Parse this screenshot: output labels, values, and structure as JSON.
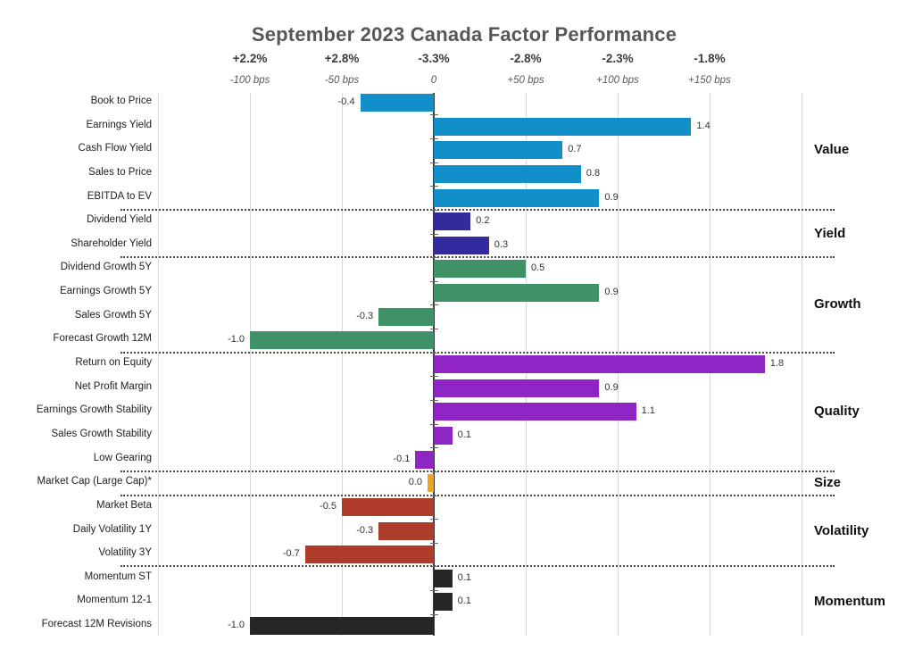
{
  "page": {
    "background": "#ffffff"
  },
  "colors": {
    "title_text": "#575757",
    "gridline": "#d9d9d9",
    "zero_axis": "#3a3a3a",
    "separator_dots": "#4a4a4a",
    "value_blue": "#128fc8",
    "yield_indigo": "#332a9e",
    "growth_green": "#3f9166",
    "quality_purple": "#8f25c4",
    "size_orange": "#eda51f",
    "volatility_red": "#ae3c2a",
    "momentum_black": "#262626"
  },
  "chart_data": {
    "type": "bar",
    "orientation": "horizontal",
    "title": "September 2023 Canada Factor Performance",
    "top_axis": {
      "percent_row": [
        "+2.2%",
        "+2.8%",
        "-3.3%",
        "-2.8%",
        "-2.3%",
        "-1.8%"
      ],
      "bps_row": [
        "-100 bps",
        "-50 bps",
        "0",
        "+50 bps",
        "+100 bps",
        "+150 bps"
      ],
      "bps_values": [
        -100,
        -50,
        0,
        50,
        100,
        150
      ],
      "xlim_bps": [
        -150,
        200
      ],
      "grid_step_bps": 50,
      "grid_on": true
    },
    "value_unit": "1.0 = 100 bps",
    "groups": [
      {
        "name": "Value",
        "color": "#128fc8",
        "items": [
          {
            "label": "Book to Price",
            "value": -0.4,
            "display": "-0.4"
          },
          {
            "label": "Earnings Yield",
            "value": 1.4,
            "display": "1.4"
          },
          {
            "label": "Cash Flow Yield",
            "value": 0.7,
            "display": "0.7"
          },
          {
            "label": "Sales to Price",
            "value": 0.8,
            "display": "0.8"
          },
          {
            "label": "EBITDA to EV",
            "value": 0.9,
            "display": "0.9"
          }
        ]
      },
      {
        "name": "Yield",
        "color": "#332a9e",
        "items": [
          {
            "label": "Dividend Yield",
            "value": 0.2,
            "display": "0.2"
          },
          {
            "label": "Shareholder Yield",
            "value": 0.3,
            "display": "0.3"
          }
        ]
      },
      {
        "name": "Growth",
        "color": "#3f9166",
        "items": [
          {
            "label": "Dividend Growth 5Y",
            "value": 0.5,
            "display": "0.5"
          },
          {
            "label": "Earnings Growth 5Y",
            "value": 0.9,
            "display": "0.9"
          },
          {
            "label": "Sales Growth 5Y",
            "value": -0.3,
            "display": "-0.3"
          },
          {
            "label": "Forecast Growth 12M",
            "value": -1.0,
            "display": "-1.0"
          }
        ]
      },
      {
        "name": "Quality",
        "color": "#8f25c4",
        "items": [
          {
            "label": "Return on Equity",
            "value": 1.8,
            "display": "1.8"
          },
          {
            "label": "Net Profit Margin",
            "value": 0.9,
            "display": "0.9"
          },
          {
            "label": "Earnings Growth Stability",
            "value": 1.1,
            "display": "1.1"
          },
          {
            "label": "Sales Growth Stability",
            "value": 0.1,
            "display": "0.1"
          },
          {
            "label": "Low Gearing",
            "value": -0.1,
            "display": "-0.1"
          }
        ]
      },
      {
        "name": "Size",
        "color": "#eda51f",
        "items": [
          {
            "label": "Market Cap (Large Cap)*",
            "value": 0.0,
            "display": "0.0"
          }
        ]
      },
      {
        "name": "Volatility",
        "color": "#ae3c2a",
        "items": [
          {
            "label": "Market Beta",
            "value": -0.5,
            "display": "-0.5"
          },
          {
            "label": "Daily Volatility 1Y",
            "value": -0.3,
            "display": "-0.3"
          },
          {
            "label": "Volatility 3Y",
            "value": -0.7,
            "display": "-0.7"
          }
        ]
      },
      {
        "name": "Momentum",
        "color": "#262626",
        "items": [
          {
            "label": "Momentum ST",
            "value": 0.1,
            "display": "0.1"
          },
          {
            "label": "Momentum 12-1",
            "value": 0.1,
            "display": "0.1"
          },
          {
            "label": "Forecast 12M Revisions",
            "value": -1.0,
            "display": "-1.0"
          }
        ]
      }
    ]
  }
}
